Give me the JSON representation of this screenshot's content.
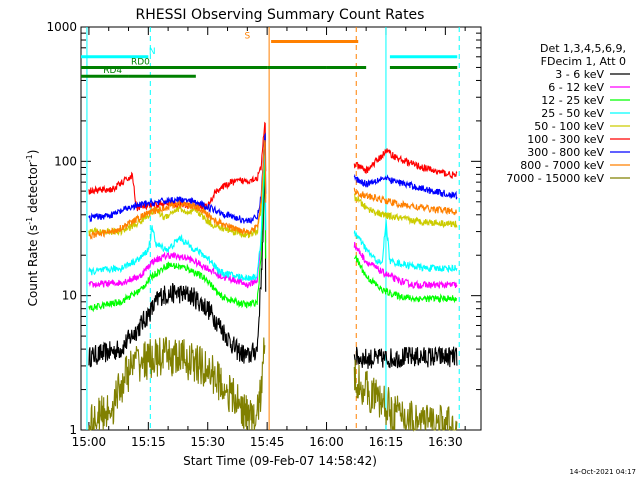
{
  "chart_data": {
    "type": "line",
    "title": "RHESSI Observing Summary Count Rates",
    "xlabel": "Start Time (09-Feb-07 14:58:42)",
    "ylabel": "Count Rate (s",
    "ylabel_sup1": "-1",
    "ylabel_mid": " detector",
    "ylabel_sup2": "-1",
    "ylabel_end": ")",
    "y_scale": "log",
    "ylim": [
      1,
      1000
    ],
    "xlim_minutes": [
      -2,
      99
    ],
    "x_ticks": [
      {
        "m": 0,
        "label": "15:00"
      },
      {
        "m": 15,
        "label": "15:15"
      },
      {
        "m": 30,
        "label": "15:30"
      },
      {
        "m": 45,
        "label": "15:45"
      },
      {
        "m": 60,
        "label": "16:00"
      },
      {
        "m": 75,
        "label": "16:15"
      },
      {
        "m": 90,
        "label": "16:30"
      }
    ],
    "y_ticks": [
      {
        "v": 1,
        "label": "1"
      },
      {
        "v": 10,
        "label": "10"
      },
      {
        "v": 100,
        "label": "100"
      },
      {
        "v": 1000,
        "label": "1000"
      }
    ],
    "legend_header": [
      "Det 1,3,4,5,6,9,",
      "FDecim 1, Att 0"
    ],
    "legend_placement": "right",
    "series": [
      {
        "name": "3 - 6 keV",
        "color": "#000000",
        "points": [
          [
            0,
            3.5
          ],
          [
            8,
            4
          ],
          [
            13,
            6
          ],
          [
            16,
            8
          ],
          [
            18,
            10
          ],
          [
            22,
            10.5
          ],
          [
            26,
            10
          ],
          [
            30,
            8
          ],
          [
            33,
            6
          ],
          [
            37,
            4
          ],
          [
            40,
            3.5
          ],
          [
            42.5,
            4
          ],
          [
            43.5,
            14
          ],
          [
            44,
            30
          ],
          [
            44.5,
            100
          ],
          [
            44.7,
            5
          ]
        ],
        "points2": [
          [
            67,
            3.5
          ],
          [
            70,
            3.4
          ],
          [
            75,
            3.4
          ],
          [
            80,
            3.5
          ],
          [
            85,
            3.5
          ],
          [
            90,
            3.5
          ],
          [
            93,
            3.5
          ]
        ]
      },
      {
        "name": "6 - 12 keV",
        "color": "#ff00ff",
        "points": [
          [
            0,
            12
          ],
          [
            8,
            12.5
          ],
          [
            13,
            14
          ],
          [
            16,
            18
          ],
          [
            20,
            20
          ],
          [
            25,
            19
          ],
          [
            30,
            16
          ],
          [
            33,
            14
          ],
          [
            37,
            13
          ],
          [
            40,
            12
          ],
          [
            42.5,
            13
          ],
          [
            43.5,
            25
          ],
          [
            44,
            60
          ],
          [
            44.5,
            150
          ],
          [
            44.7,
            12
          ]
        ],
        "points2": [
          [
            67,
            24
          ],
          [
            70,
            18
          ],
          [
            74,
            15
          ],
          [
            78,
            13
          ],
          [
            82,
            12
          ],
          [
            87,
            12
          ],
          [
            93,
            12
          ]
        ]
      },
      {
        "name": "12 - 25 keV",
        "color": "#00ff00",
        "points": [
          [
            0,
            8
          ],
          [
            8,
            9
          ],
          [
            13,
            11
          ],
          [
            16,
            14
          ],
          [
            20,
            17
          ],
          [
            25,
            16
          ],
          [
            30,
            13
          ],
          [
            33,
            10
          ],
          [
            37,
            9
          ],
          [
            40,
            8.5
          ],
          [
            42.5,
            9
          ],
          [
            43.5,
            20
          ],
          [
            44,
            50
          ],
          [
            44.5,
            120
          ],
          [
            44.7,
            9
          ]
        ],
        "points2": [
          [
            67,
            20
          ],
          [
            70,
            14
          ],
          [
            74,
            11
          ],
          [
            78,
            10
          ],
          [
            82,
            9.5
          ],
          [
            87,
            9.5
          ],
          [
            93,
            9.5
          ]
        ]
      },
      {
        "name": "25 - 50 keV",
        "color": "#00ffff",
        "points": [
          [
            0,
            15
          ],
          [
            8,
            16
          ],
          [
            13,
            19
          ],
          [
            15,
            22
          ],
          [
            16,
            32
          ],
          [
            17,
            24
          ],
          [
            20,
            22
          ],
          [
            23,
            27
          ],
          [
            25,
            24
          ],
          [
            28,
            21
          ],
          [
            31,
            18
          ],
          [
            33,
            15
          ],
          [
            37,
            14
          ],
          [
            40,
            13.5
          ],
          [
            42.5,
            14
          ],
          [
            43.5,
            28
          ],
          [
            44,
            70
          ],
          [
            44.5,
            160
          ],
          [
            44.7,
            14
          ]
        ],
        "points2": [
          [
            67,
            30
          ],
          [
            70,
            22
          ],
          [
            72,
            19
          ],
          [
            74,
            17
          ],
          [
            75,
            36
          ],
          [
            76,
            18
          ],
          [
            80,
            17
          ],
          [
            85,
            16
          ],
          [
            93,
            16
          ]
        ]
      },
      {
        "name": "50 - 100 keV",
        "color": "#cccc00",
        "points": [
          [
            0,
            30
          ],
          [
            8,
            30
          ],
          [
            12,
            34
          ],
          [
            15,
            40
          ],
          [
            17,
            44
          ],
          [
            19,
            38
          ],
          [
            21,
            42
          ],
          [
            23,
            45
          ],
          [
            25,
            40
          ],
          [
            27,
            44
          ],
          [
            29,
            38
          ],
          [
            31,
            34
          ],
          [
            33,
            32
          ],
          [
            37,
            30
          ],
          [
            40,
            28
          ],
          [
            42.5,
            30
          ],
          [
            43.5,
            45
          ],
          [
            44,
            90
          ],
          [
            44.5,
            190
          ],
          [
            44.7,
            28
          ]
        ],
        "points2": [
          [
            67,
            55
          ],
          [
            70,
            45
          ],
          [
            74,
            40
          ],
          [
            78,
            38
          ],
          [
            82,
            36
          ],
          [
            87,
            35
          ],
          [
            93,
            34
          ]
        ]
      },
      {
        "name": "100 - 300 keV",
        "color": "#ff0000",
        "points": [
          [
            0,
            60
          ],
          [
            6,
            62
          ],
          [
            10,
            75
          ],
          [
            11,
            78
          ],
          [
            12,
            45
          ],
          [
            14,
            46
          ],
          [
            18,
            48
          ],
          [
            22,
            48
          ],
          [
            26,
            47
          ],
          [
            30,
            46
          ],
          [
            32,
            60
          ],
          [
            36,
            70
          ],
          [
            40,
            72
          ],
          [
            42.5,
            75
          ],
          [
            43.5,
            90
          ],
          [
            44,
            140
          ],
          [
            44.5,
            210
          ],
          [
            44.7,
            60
          ]
        ],
        "points2": [
          [
            67,
            95
          ],
          [
            70,
            85
          ],
          [
            74,
            110
          ],
          [
            75,
            120
          ],
          [
            78,
            105
          ],
          [
            82,
            95
          ],
          [
            87,
            85
          ],
          [
            93,
            78
          ]
        ]
      },
      {
        "name": "300 - 800 keV",
        "color": "#0000ff",
        "points": [
          [
            0,
            38
          ],
          [
            6,
            40
          ],
          [
            10,
            45
          ],
          [
            14,
            48
          ],
          [
            18,
            50
          ],
          [
            22,
            52
          ],
          [
            26,
            50
          ],
          [
            30,
            46
          ],
          [
            33,
            42
          ],
          [
            37,
            38
          ],
          [
            40,
            36
          ],
          [
            42.5,
            38
          ],
          [
            43.5,
            55
          ],
          [
            44,
            100
          ],
          [
            44.5,
            180
          ],
          [
            44.7,
            36
          ]
        ],
        "points2": [
          [
            67,
            75
          ],
          [
            70,
            68
          ],
          [
            74,
            75
          ],
          [
            78,
            70
          ],
          [
            82,
            65
          ],
          [
            87,
            60
          ],
          [
            93,
            55
          ]
        ]
      },
      {
        "name": "800 - 7000 keV",
        "color": "#ff8000",
        "points": [
          [
            0,
            28
          ],
          [
            6,
            30
          ],
          [
            10,
            34
          ],
          [
            14,
            40
          ],
          [
            18,
            44
          ],
          [
            22,
            48
          ],
          [
            26,
            47
          ],
          [
            29,
            42
          ],
          [
            32,
            36
          ],
          [
            36,
            32
          ],
          [
            40,
            30
          ],
          [
            42.5,
            32
          ],
          [
            43.5,
            50
          ],
          [
            44,
            95
          ],
          [
            44.5,
            170
          ],
          [
            44.7,
            30
          ]
        ],
        "points2": [
          [
            67,
            60
          ],
          [
            70,
            55
          ],
          [
            74,
            52
          ],
          [
            78,
            48
          ],
          [
            82,
            46
          ],
          [
            87,
            44
          ],
          [
            93,
            42
          ]
        ]
      },
      {
        "name": "7000 - 15000 keV",
        "color": "#808000",
        "points": [
          [
            0,
            1.1
          ],
          [
            6,
            1.5
          ],
          [
            9,
            2.5
          ],
          [
            12,
            3.2
          ],
          [
            16,
            3.4
          ],
          [
            20,
            3.5
          ],
          [
            24,
            3.4
          ],
          [
            28,
            3
          ],
          [
            32,
            2.5
          ],
          [
            36,
            1.8
          ],
          [
            40,
            1.3
          ],
          [
            42,
            1.1
          ],
          [
            43.5,
            2
          ],
          [
            44,
            3
          ],
          [
            44.5,
            5
          ]
        ],
        "points2": [
          [
            67,
            2.5
          ],
          [
            70,
            2
          ],
          [
            74,
            1.6
          ],
          [
            78,
            1.3
          ],
          [
            82,
            1.2
          ],
          [
            87,
            1.1
          ],
          [
            93,
            1.05
          ]
        ]
      }
    ],
    "status_bars": [
      {
        "label": "N",
        "color": "#00ffff",
        "level": 600,
        "segments": [
          [
            -2,
            15
          ]
        ],
        "label_at": 16
      },
      {
        "label": "N",
        "color": "#00ffff",
        "level": 600,
        "segments": [
          [
            76,
            93
          ]
        ],
        "label_at": null
      },
      {
        "label": "RD0",
        "color": "#008000",
        "level": 500,
        "segments": [
          [
            -2,
            45
          ],
          [
            45,
            60
          ],
          [
            60,
            70
          ],
          [
            76,
            93
          ]
        ],
        "label_at": 13
      },
      {
        "label": "RD4",
        "color": "#008000",
        "level": 430,
        "segments": [
          [
            -2,
            10
          ],
          [
            10,
            27
          ]
        ],
        "label_at": 6
      },
      {
        "label": "S",
        "color": "#ff8000",
        "level": 780,
        "segments": [
          [
            46,
            68
          ]
        ],
        "label_at": 40
      }
    ],
    "vlines": [
      {
        "m": 15.5,
        "color": "#00ffff",
        "style": "dashed"
      },
      {
        "m": 93.5,
        "color": "#00ffff",
        "style": "dashed"
      },
      {
        "m": 75,
        "color": "#00ffff",
        "style": "solid"
      },
      {
        "m": -0.5,
        "color": "#00ffff",
        "style": "solid"
      },
      {
        "m": 45.5,
        "color": "#ff8000",
        "style": "solid"
      },
      {
        "m": 67.5,
        "color": "#ff8000",
        "style": "dashed"
      }
    ],
    "grid": false
  },
  "footer_timestamp": "14-Oct-2021 04:17"
}
